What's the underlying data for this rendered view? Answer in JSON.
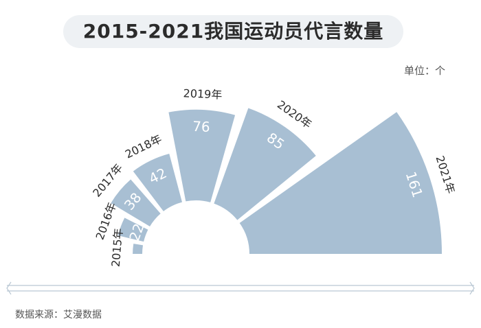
{
  "title": "2015-2021我国运动员代言数量",
  "unit": "单位：个",
  "source": "数据来源：艾漫数据",
  "colors": {
    "bar": "#a8bfd3",
    "value_text": "#ffffff",
    "title_bg": "#eef1f4"
  },
  "chart_data": {
    "type": "bar",
    "title": "2015-2021我国运动员代言数量",
    "categories": [
      "2015年",
      "2016年",
      "2017年",
      "2018年",
      "2019年",
      "2020年",
      "2021年"
    ],
    "values": [
      8,
      22,
      38,
      42,
      76,
      85,
      161
    ],
    "xlabel": "",
    "ylabel": "",
    "grid": false
  }
}
